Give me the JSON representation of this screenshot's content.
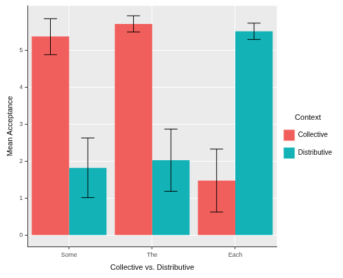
{
  "chart_data": {
    "type": "bar",
    "x_label": "Collective vs. Distributive",
    "y_label": "Mean Acceptance",
    "categories": [
      "Some",
      "The",
      "Each"
    ],
    "series": [
      {
        "name": "Collective",
        "color": "#F15F5C",
        "values": [
          5.37,
          5.71,
          1.48
        ],
        "error_low": [
          4.88,
          5.49,
          0.63
        ],
        "error_high": [
          5.85,
          5.93,
          2.33
        ]
      },
      {
        "name": "Distributive",
        "color": "#12B2B6",
        "values": [
          1.82,
          2.03,
          5.51
        ],
        "error_low": [
          1.02,
          1.19,
          5.29
        ],
        "error_high": [
          2.63,
          2.87,
          5.73
        ]
      }
    ],
    "ylim": [
      -0.3,
      6.2
    ],
    "yticks": [
      0,
      1,
      2,
      3,
      4,
      5
    ],
    "grid": true,
    "legend": "right",
    "legend_title": "Context"
  }
}
